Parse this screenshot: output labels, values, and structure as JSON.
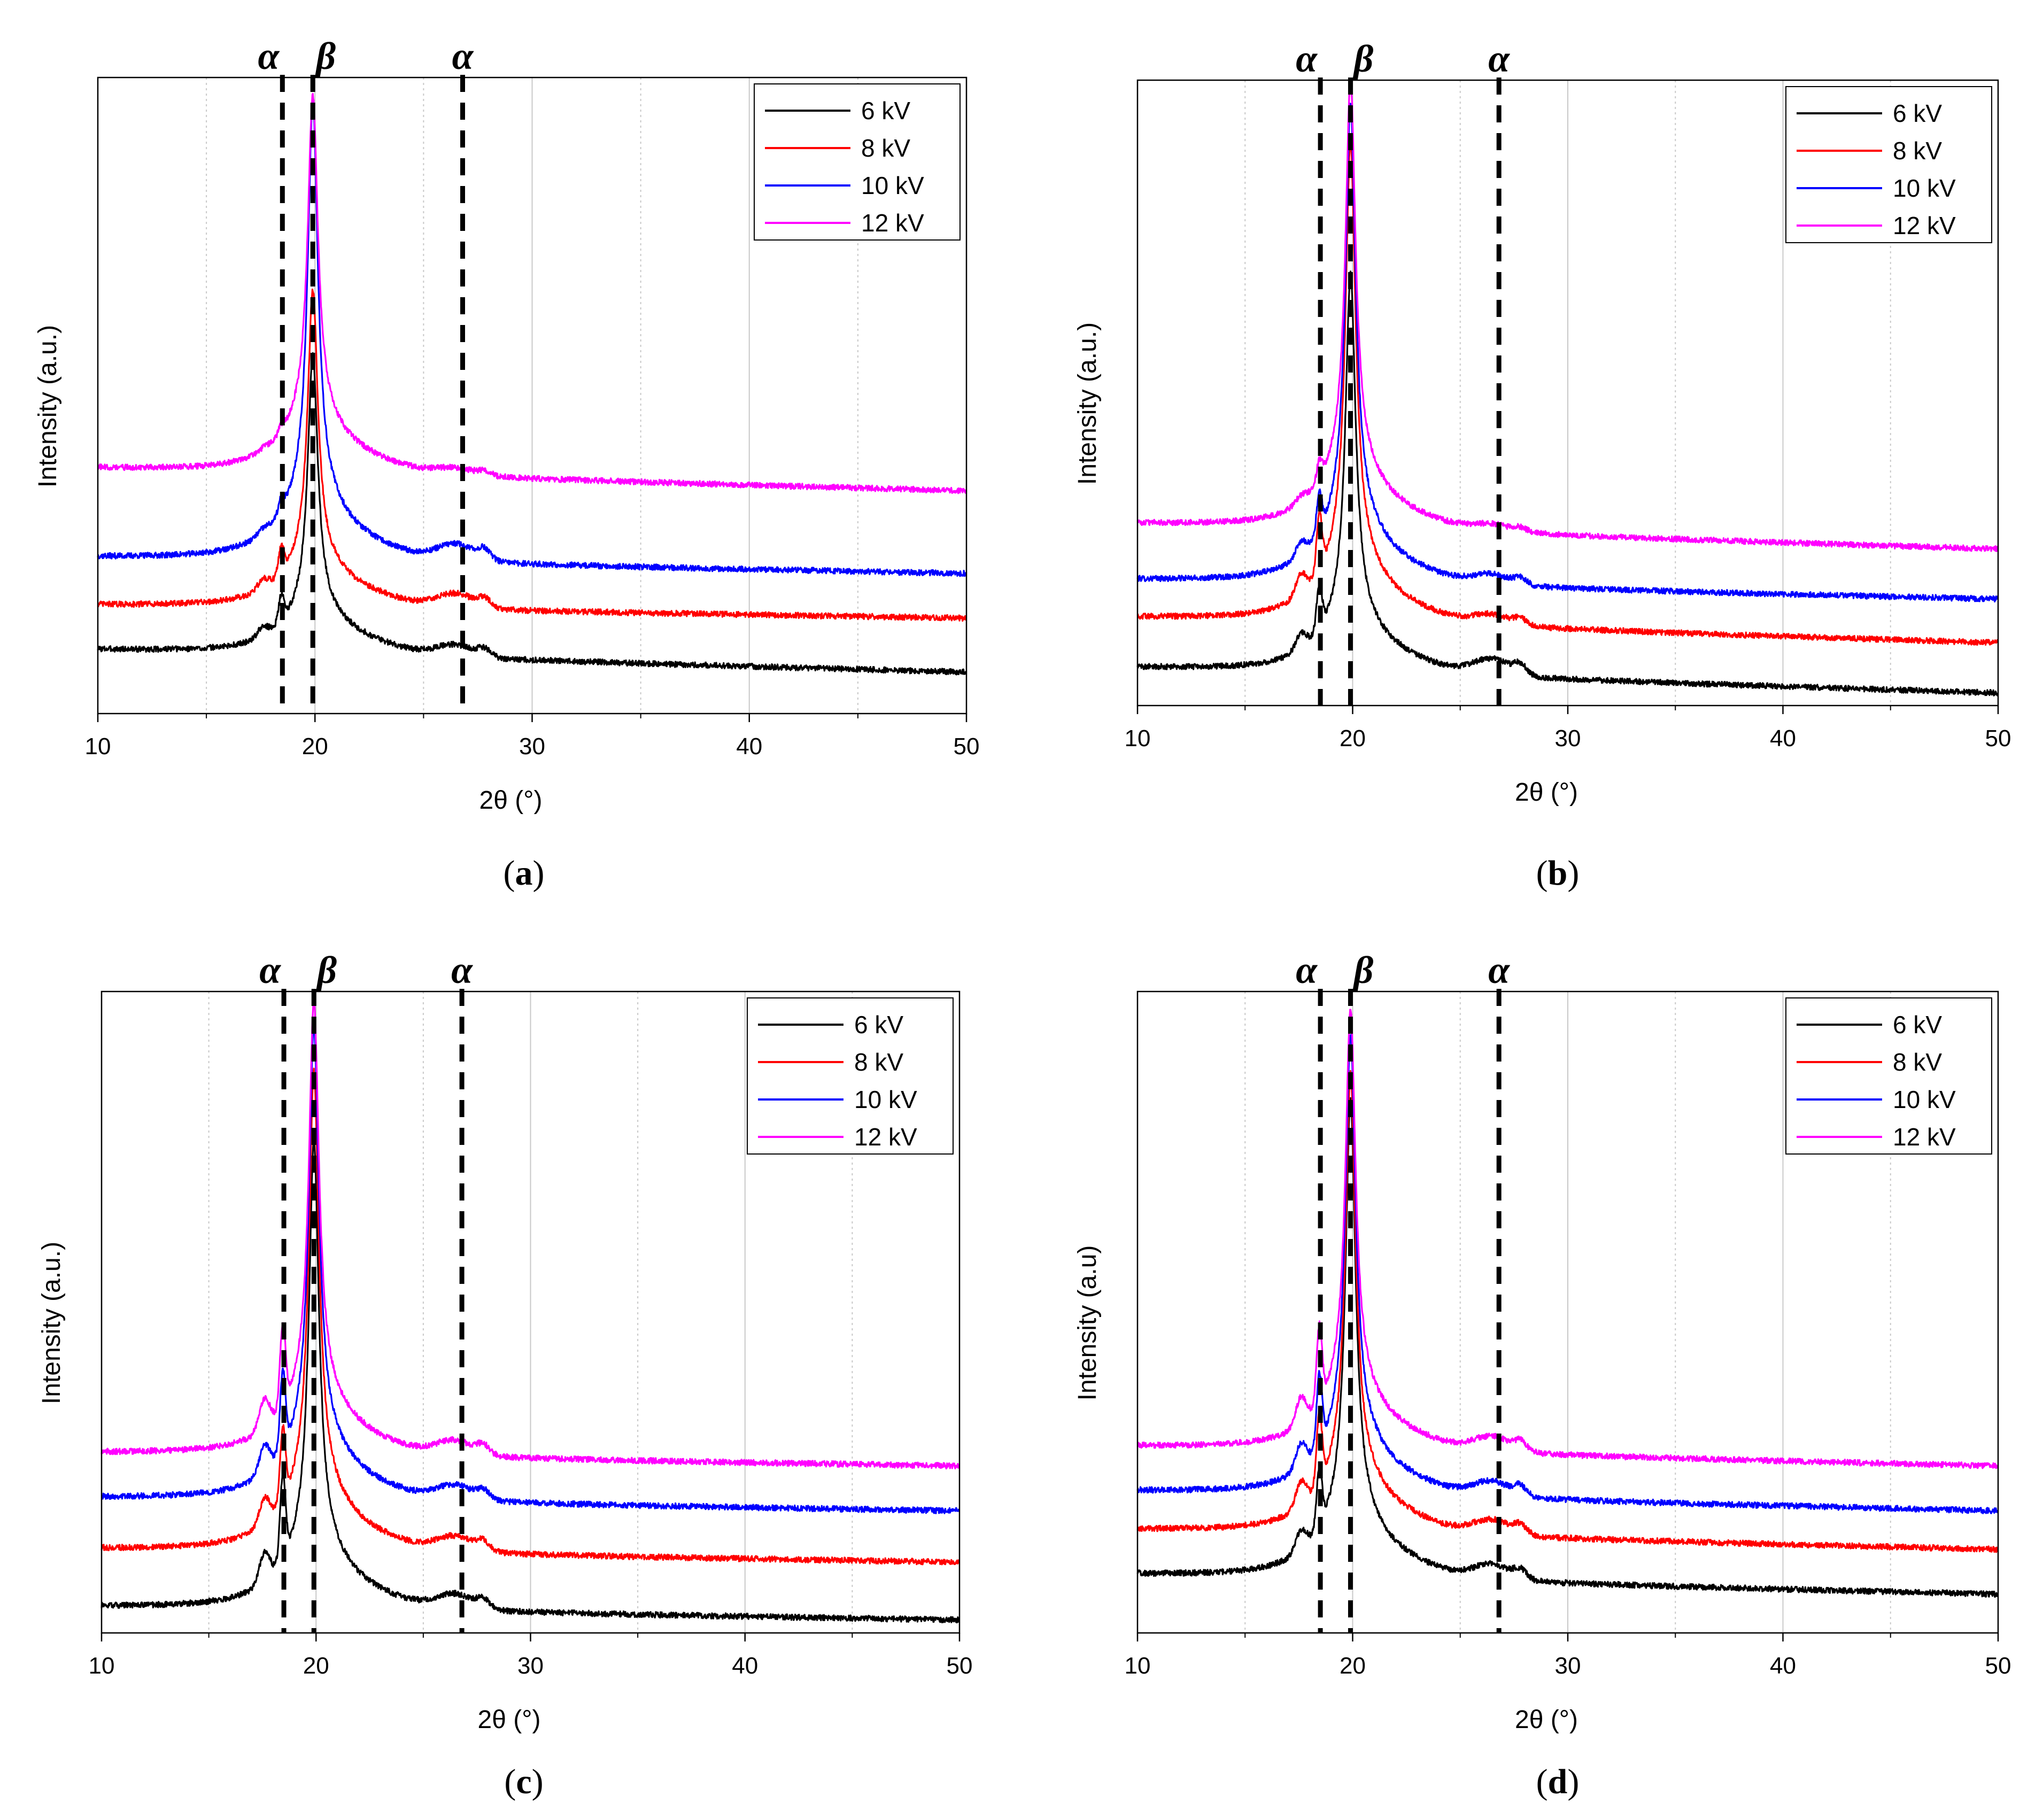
{
  "colors": {
    "6 kV": "#000000",
    "8 kV": "#ff0000",
    "10 kV": "#0000ff",
    "12 kV": "#ff00ff",
    "grid": "#c8c8c8",
    "marker": "#000000"
  },
  "chart_data": [
    {
      "type": "line",
      "panel_label": "a",
      "xlabel": "2θ (°)",
      "ylabel": "Intensity (a.u.)",
      "xlim": [
        10,
        50
      ],
      "ylim": [
        0,
        100
      ],
      "x_ticks": [
        "10",
        "20",
        "30",
        "40",
        "50"
      ],
      "grid": "vertical",
      "legend_position": "top-right",
      "markers": [
        {
          "x": 18.5,
          "label": "α"
        },
        {
          "x": 19.9,
          "label": "β"
        },
        {
          "x": 26.8,
          "label": "α"
        }
      ],
      "series": [
        {
          "name": "6 kV",
          "baseline": 10,
          "end": 6.5,
          "peak": 56,
          "shoulder": 4,
          "hump": 1.8
        },
        {
          "name": "8 kV",
          "baseline": 17,
          "end": 15,
          "peak": 66,
          "shoulder": 4,
          "hump": 2.2
        },
        {
          "name": "10 kV",
          "baseline": 24.5,
          "end": 22,
          "peak": 96,
          "shoulder": 2,
          "hump": 2.5
        },
        {
          "name": "12 kV",
          "baseline": 38.5,
          "end": 35,
          "peak": 97,
          "shoulder": 1,
          "hump": 1.0
        }
      ]
    },
    {
      "type": "line",
      "panel_label": "b",
      "xlabel": "2θ (°)",
      "ylabel": "Intensity (a.u.)",
      "xlim": [
        10,
        50
      ],
      "ylim": [
        0,
        100
      ],
      "x_ticks": [
        "10",
        "20",
        "30",
        "40",
        "50"
      ],
      "grid": "vertical",
      "legend_position": "top-right",
      "markers": [
        {
          "x": 18.5,
          "label": "α"
        },
        {
          "x": 19.9,
          "label": "β"
        },
        {
          "x": 26.8,
          "label": "α"
        }
      ],
      "series": [
        {
          "name": "6 kV",
          "baseline": 6,
          "end": 2,
          "peak": 69,
          "shoulder": 7,
          "hump": 2.5
        },
        {
          "name": "8 kV",
          "baseline": 14,
          "end": 10,
          "peak": 90,
          "shoulder": 9,
          "hump": 1.5
        },
        {
          "name": "10 kV",
          "baseline": 20,
          "end": 17,
          "peak": 96,
          "shoulder": 6,
          "hump": 1.5
        },
        {
          "name": "12 kV",
          "baseline": 29,
          "end": 25,
          "peak": 100,
          "shoulder": 3,
          "hump": 1.0
        }
      ]
    },
    {
      "type": "line",
      "panel_label": "c",
      "xlabel": "2θ (°)",
      "ylabel": "Intensity (a.u.)",
      "xlim": [
        10,
        50
      ],
      "ylim": [
        0,
        100
      ],
      "x_ticks": [
        "10",
        "20",
        "30",
        "40",
        "50"
      ],
      "grid": "vertical",
      "legend_position": "top-right",
      "markers": [
        {
          "x": 18.5,
          "label": "α"
        },
        {
          "x": 19.9,
          "label": "β"
        },
        {
          "x": 26.8,
          "label": "α"
        }
      ],
      "series": [
        {
          "name": "6 kV",
          "baseline": 4,
          "end": 2,
          "peak": 76,
          "shoulder": 13,
          "hump": 2.2
        },
        {
          "name": "8 kV",
          "baseline": 13,
          "end": 11,
          "peak": 87,
          "shoulder": 11,
          "hump": 2.2
        },
        {
          "name": "10 kV",
          "baseline": 21,
          "end": 19,
          "peak": 94,
          "shoulder": 12,
          "hump": 2.2
        },
        {
          "name": "12 kV",
          "baseline": 28,
          "end": 26,
          "peak": 98,
          "shoulder": 13,
          "hump": 2.2
        }
      ]
    },
    {
      "type": "line",
      "panel_label": "d",
      "xlabel": "2θ (°)",
      "ylabel": "Intensity (a.u)",
      "xlim": [
        10,
        50
      ],
      "ylim": [
        0,
        100
      ],
      "x_ticks": [
        "10",
        "20",
        "30",
        "40",
        "50"
      ],
      "grid": "vertical",
      "legend_position": "top-right",
      "markers": [
        {
          "x": 18.5,
          "label": "α"
        },
        {
          "x": 19.9,
          "label": "β"
        },
        {
          "x": 26.8,
          "label": "α"
        }
      ],
      "series": [
        {
          "name": "6 kV",
          "baseline": 9,
          "end": 6,
          "peak": 83,
          "shoulder": 9,
          "hump": 2.2
        },
        {
          "name": "8 kV",
          "baseline": 16,
          "end": 13,
          "peak": 87,
          "shoulder": 11,
          "hump": 2.2
        },
        {
          "name": "10 kV",
          "baseline": 22,
          "end": 19,
          "peak": 93,
          "shoulder": 11,
          "hump": 2.2
        },
        {
          "name": "12 kV",
          "baseline": 29,
          "end": 26,
          "peak": 97,
          "shoulder": 12,
          "hump": 2.2
        }
      ]
    }
  ]
}
